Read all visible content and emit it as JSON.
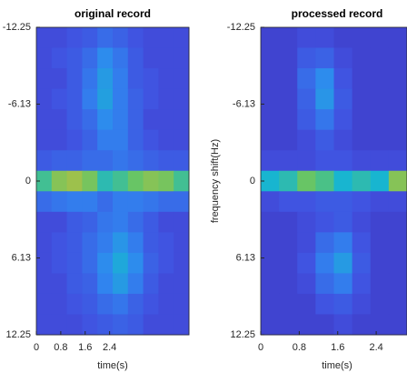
{
  "chart_data": [
    {
      "type": "heatmap",
      "title": "original record",
      "xlabel": "time(s)",
      "xlim": [
        0,
        5
      ],
      "xticks": [
        0,
        0.8,
        1.6,
        2.4
      ],
      "ylim": [
        -12.25,
        12.25
      ],
      "yticks": [
        -12.25,
        -6.13,
        0,
        6.13,
        12.25
      ],
      "colormap": [
        "#3e26a8",
        "#4150e0",
        "#2f88f0",
        "#18b5d0",
        "#5ec66a",
        "#dcbc2e",
        "#f9fb0e"
      ],
      "values": [
        [
          0.15,
          0.15,
          0.18,
          0.2,
          0.25,
          0.22,
          0.18,
          0.15,
          0.15,
          0.15
        ],
        [
          0.15,
          0.18,
          0.2,
          0.25,
          0.35,
          0.28,
          0.2,
          0.15,
          0.15,
          0.15
        ],
        [
          0.15,
          0.15,
          0.2,
          0.28,
          0.4,
          0.3,
          0.2,
          0.18,
          0.15,
          0.15
        ],
        [
          0.15,
          0.18,
          0.2,
          0.3,
          0.42,
          0.3,
          0.22,
          0.18,
          0.15,
          0.15
        ],
        [
          0.15,
          0.15,
          0.2,
          0.25,
          0.35,
          0.3,
          0.22,
          0.15,
          0.15,
          0.15
        ],
        [
          0.15,
          0.15,
          0.18,
          0.22,
          0.3,
          0.3,
          0.22,
          0.18,
          0.15,
          0.15
        ],
        [
          0.2,
          0.22,
          0.22,
          0.25,
          0.25,
          0.28,
          0.25,
          0.22,
          0.2,
          0.2
        ],
        [
          0.6,
          0.72,
          0.75,
          0.7,
          0.55,
          0.6,
          0.68,
          0.72,
          0.7,
          0.6
        ],
        [
          0.25,
          0.28,
          0.3,
          0.3,
          0.25,
          0.3,
          0.3,
          0.28,
          0.25,
          0.25
        ],
        [
          0.15,
          0.15,
          0.2,
          0.22,
          0.28,
          0.3,
          0.25,
          0.2,
          0.15,
          0.15
        ],
        [
          0.15,
          0.18,
          0.2,
          0.25,
          0.3,
          0.38,
          0.3,
          0.2,
          0.18,
          0.15
        ],
        [
          0.15,
          0.18,
          0.2,
          0.25,
          0.35,
          0.45,
          0.35,
          0.22,
          0.18,
          0.15
        ],
        [
          0.15,
          0.15,
          0.2,
          0.22,
          0.32,
          0.4,
          0.3,
          0.2,
          0.15,
          0.15
        ],
        [
          0.15,
          0.15,
          0.18,
          0.2,
          0.25,
          0.28,
          0.22,
          0.18,
          0.15,
          0.15
        ],
        [
          0.15,
          0.15,
          0.15,
          0.18,
          0.2,
          0.22,
          0.2,
          0.15,
          0.15,
          0.15
        ]
      ]
    },
    {
      "type": "heatmap",
      "title": "processed record",
      "xlabel": "time(s)",
      "ylabel": "frequency shift(Hz)",
      "xlim": [
        0,
        3.04
      ],
      "xticks": [
        0,
        0.8,
        1.6,
        2.4
      ],
      "ylim": [
        -12.25,
        12.25
      ],
      "yticks": [
        -12.25,
        -6.13,
        0,
        6.13,
        12.25
      ],
      "colormap": [
        "#3e26a8",
        "#4150e0",
        "#2f88f0",
        "#18b5d0",
        "#5ec66a",
        "#dcbc2e",
        "#f9fb0e"
      ],
      "values": [
        [
          0.12,
          0.12,
          0.15,
          0.15,
          0.12,
          0.12,
          0.12,
          0.12
        ],
        [
          0.12,
          0.12,
          0.2,
          0.22,
          0.15,
          0.12,
          0.12,
          0.12
        ],
        [
          0.12,
          0.12,
          0.25,
          0.35,
          0.18,
          0.12,
          0.12,
          0.12
        ],
        [
          0.12,
          0.12,
          0.22,
          0.38,
          0.2,
          0.12,
          0.12,
          0.12
        ],
        [
          0.12,
          0.12,
          0.2,
          0.28,
          0.18,
          0.12,
          0.12,
          0.12
        ],
        [
          0.12,
          0.12,
          0.15,
          0.2,
          0.15,
          0.12,
          0.12,
          0.12
        ],
        [
          0.15,
          0.15,
          0.15,
          0.18,
          0.18,
          0.15,
          0.15,
          0.15
        ],
        [
          0.5,
          0.55,
          0.68,
          0.62,
          0.5,
          0.55,
          0.5,
          0.72
        ],
        [
          0.15,
          0.18,
          0.18,
          0.2,
          0.2,
          0.18,
          0.15,
          0.15
        ],
        [
          0.12,
          0.12,
          0.15,
          0.18,
          0.2,
          0.15,
          0.12,
          0.12
        ],
        [
          0.12,
          0.12,
          0.15,
          0.25,
          0.3,
          0.18,
          0.12,
          0.12
        ],
        [
          0.12,
          0.12,
          0.18,
          0.3,
          0.4,
          0.2,
          0.12,
          0.12
        ],
        [
          0.12,
          0.12,
          0.15,
          0.25,
          0.3,
          0.18,
          0.12,
          0.12
        ],
        [
          0.12,
          0.12,
          0.12,
          0.18,
          0.2,
          0.15,
          0.12,
          0.12
        ],
        [
          0.12,
          0.12,
          0.12,
          0.12,
          0.15,
          0.12,
          0.12,
          0.12
        ]
      ]
    }
  ]
}
